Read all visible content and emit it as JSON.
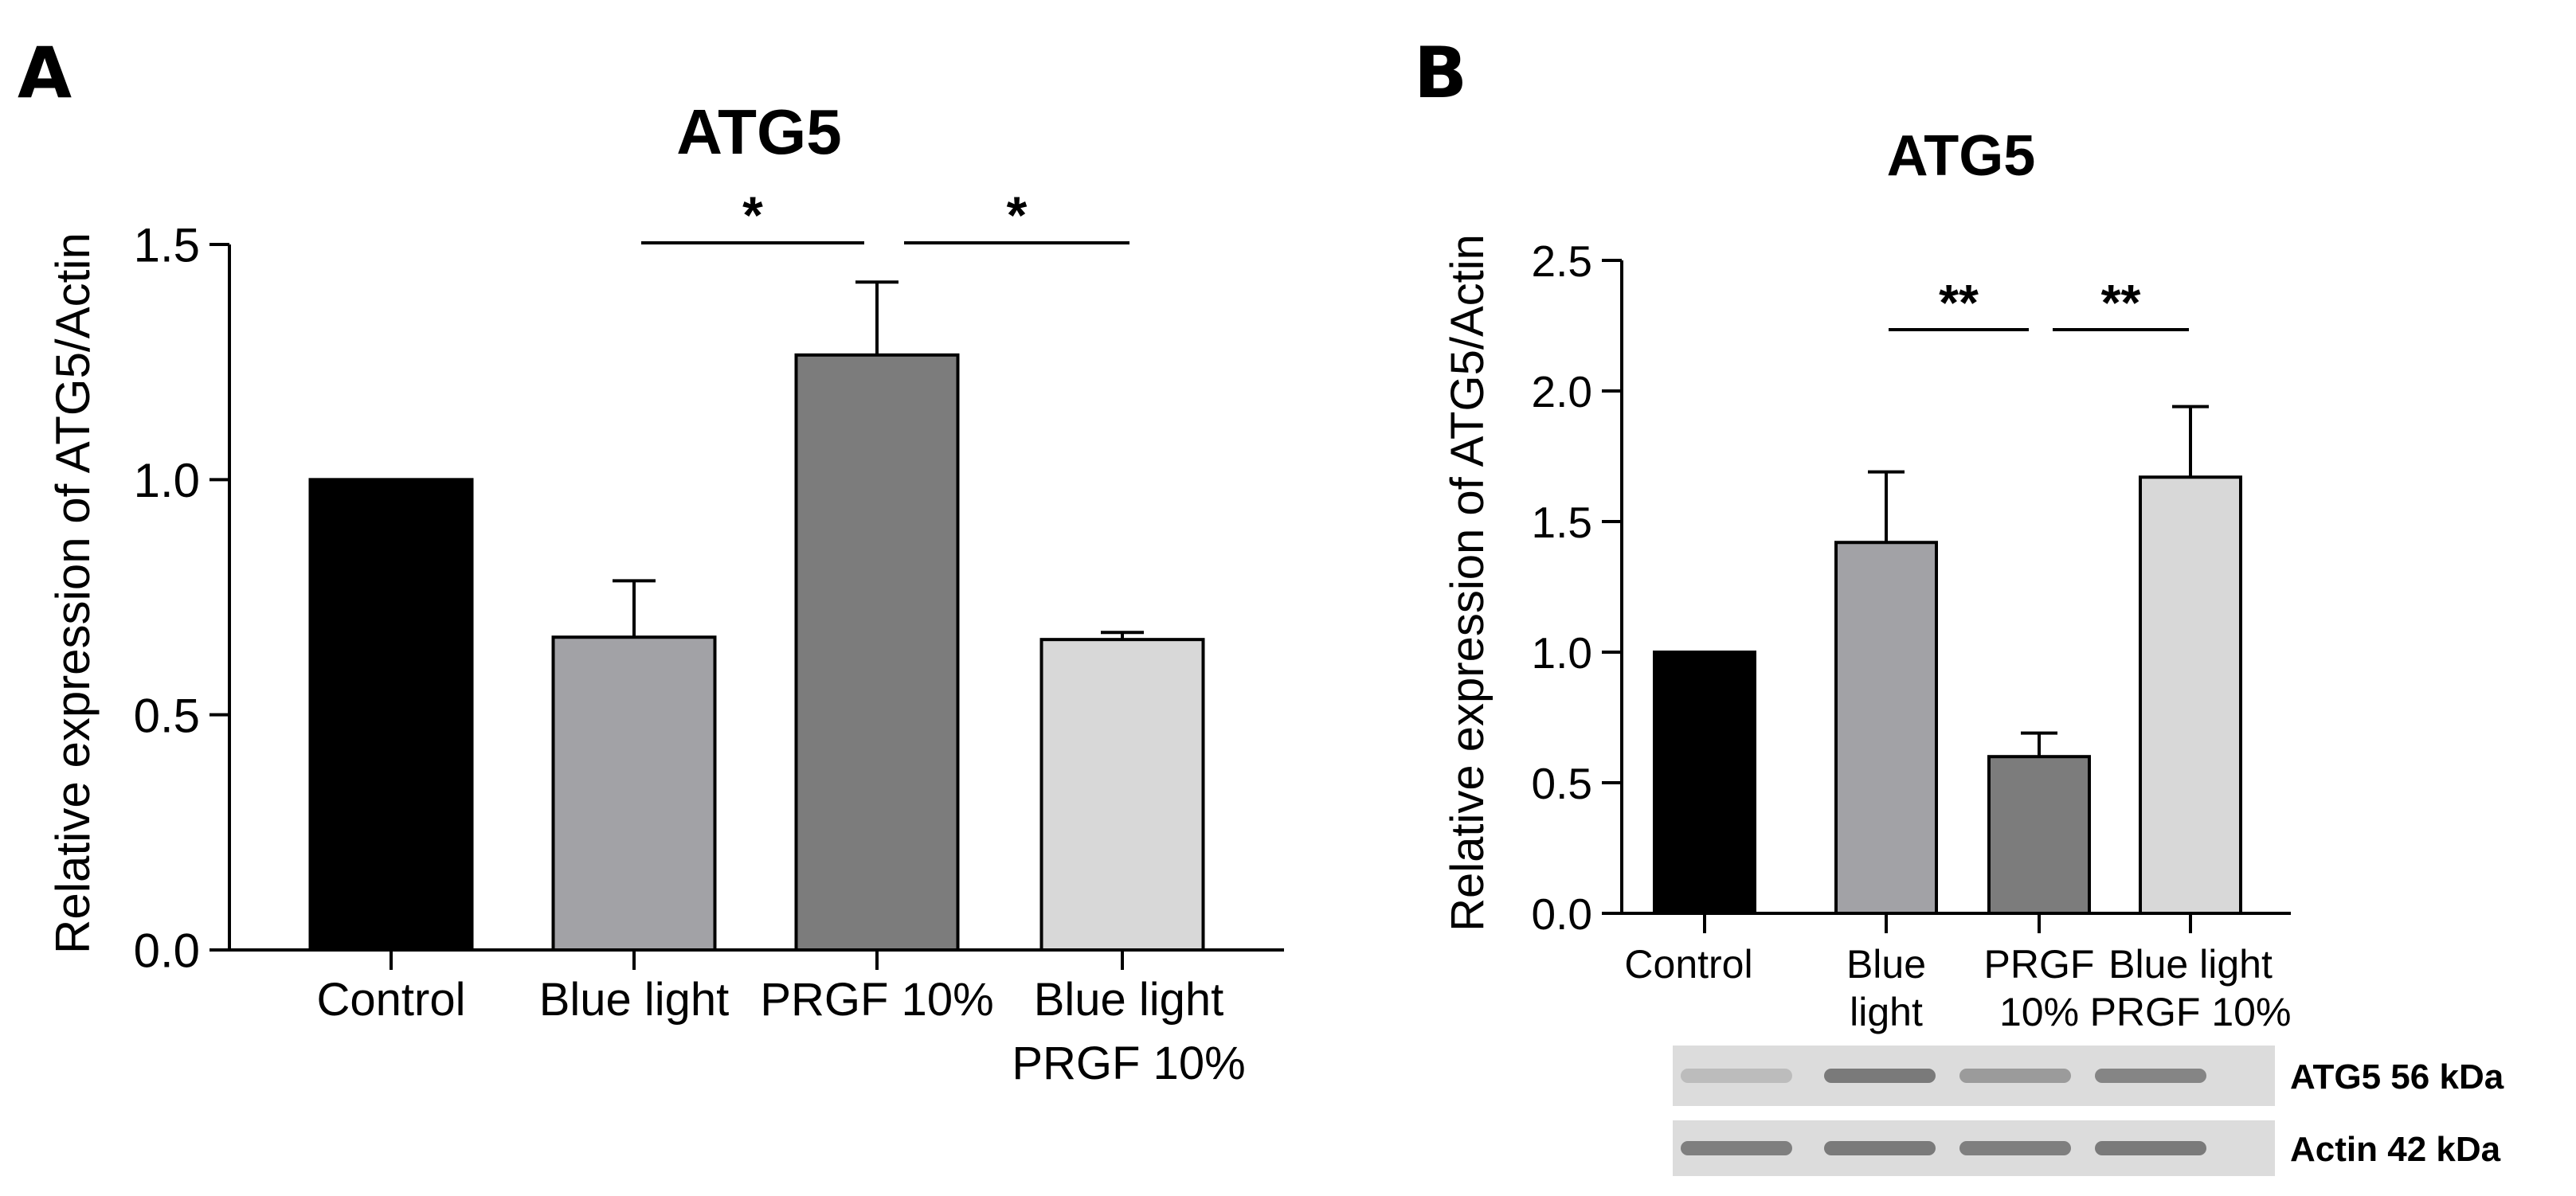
{
  "chart_data": [
    {
      "type": "bar",
      "panel_label": "A",
      "title": "ATG5",
      "xlabel": "",
      "ylabel": "Relative expression of ATG5/Actin",
      "ylim": [
        0,
        1.5
      ],
      "yticks": [
        "0.0",
        "0.5",
        "1.0",
        "1.5"
      ],
      "categories": [
        [
          "Control"
        ],
        [
          "Blue light"
        ],
        [
          "PRGF 10%"
        ],
        [
          "Blue light",
          "PRGF 10%"
        ]
      ],
      "values": [
        1.0,
        0.665,
        1.265,
        0.66
      ],
      "errors": [
        0,
        0.12,
        0.155,
        0.015
      ],
      "colors": [
        "#000000",
        "#a2a2a6",
        "#7c7c7c",
        "#d8d8d8"
      ],
      "significance": [
        {
          "from": 1,
          "to": 2,
          "label": "*"
        },
        {
          "from": 2,
          "to": 3,
          "label": "*"
        }
      ]
    },
    {
      "type": "bar",
      "panel_label": "B",
      "title": "ATG5",
      "xlabel": "",
      "ylabel": "Relative expression of ATG5/Actin",
      "ylim": [
        0,
        2.5
      ],
      "yticks": [
        "0.0",
        "0.5",
        "1.0",
        "1.5",
        "2.0",
        "2.5"
      ],
      "categories": [
        [
          "Control"
        ],
        [
          "Blue",
          "light"
        ],
        [
          "PRGF",
          "10%"
        ],
        [
          "Blue light",
          "PRGF  10%"
        ]
      ],
      "values": [
        1.0,
        1.42,
        0.6,
        1.67
      ],
      "errors": [
        0,
        0.27,
        0.09,
        0.27
      ],
      "colors": [
        "#000000",
        "#a2a2a6",
        "#7c7c7c",
        "#d8d8d8"
      ],
      "significance": [
        {
          "from": 1,
          "to": 2,
          "label": "**"
        },
        {
          "from": 2,
          "to": 3,
          "label": "**"
        }
      ],
      "blots": [
        {
          "label": "ATG5 56 kDa",
          "intensities": [
            0.25,
            0.85,
            0.55,
            0.75
          ]
        },
        {
          "label": "Actin 42 kDa",
          "intensities": [
            0.8,
            0.85,
            0.8,
            0.85
          ]
        }
      ]
    }
  ]
}
